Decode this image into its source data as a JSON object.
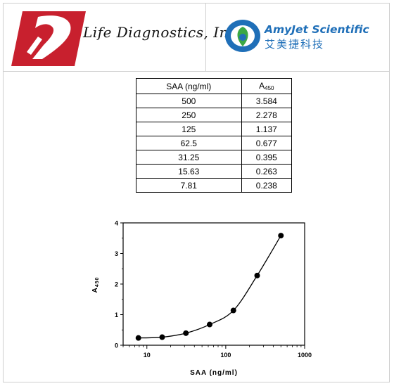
{
  "logos": {
    "left_brand": "Life Diagnostics, Inc.",
    "right_brand": "AmyJet Scientific",
    "right_brand_cn": "艾美捷科技"
  },
  "table": {
    "headers": {
      "col1": "SAA (ng/ml)",
      "col2_main": "A",
      "col2_sub": "450"
    },
    "rows": [
      [
        "500",
        "3.584"
      ],
      [
        "250",
        "2.278"
      ],
      [
        "125",
        "1.137"
      ],
      [
        "62.5",
        "0.677"
      ],
      [
        "31.25",
        "0.395"
      ],
      [
        "15.63",
        "0.263"
      ],
      [
        "7.81",
        "0.238"
      ]
    ]
  },
  "colors": {
    "ld_red": "#c8202e",
    "aj_blue": "#1f6fb8",
    "aj_green": "#3aa845"
  },
  "chart_data": {
    "type": "scatter",
    "x_scale": "log",
    "xlabel": "SAA (ng/ml)",
    "ylabel": "A450",
    "xlim": [
      5,
      1000
    ],
    "ylim": [
      0,
      4
    ],
    "x_ticks": [
      "10",
      "100",
      "1000"
    ],
    "y_ticks": [
      "0",
      "1",
      "2",
      "3",
      "4"
    ],
    "points": [
      {
        "x": 7.81,
        "y": 0.238
      },
      {
        "x": 15.63,
        "y": 0.263
      },
      {
        "x": 31.25,
        "y": 0.395
      },
      {
        "x": 62.5,
        "y": 0.677
      },
      {
        "x": 125,
        "y": 1.137
      },
      {
        "x": 250,
        "y": 2.278
      },
      {
        "x": 500,
        "y": 3.584
      }
    ],
    "fit_curve": true,
    "grid": false
  }
}
